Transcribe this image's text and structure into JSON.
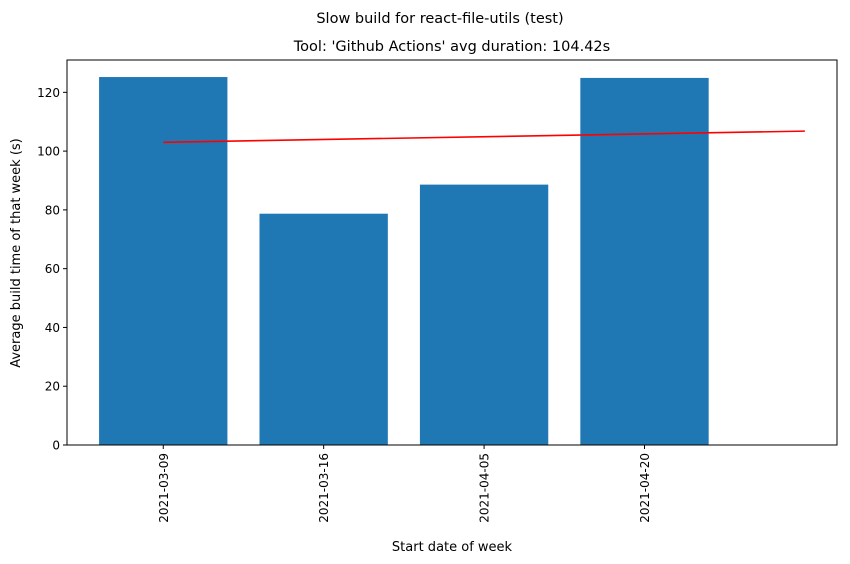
{
  "chart_data": {
    "type": "bar",
    "suptitle": "Slow build for react-file-utils (test)",
    "title": "Tool: 'Github Actions' avg duration: 104.42s",
    "xlabel": "Start date of week",
    "ylabel": "Average build time of that week (s)",
    "categories": [
      "2021-03-09",
      "2021-03-16",
      "2021-04-05",
      "2021-04-20"
    ],
    "values": [
      125.2,
      78.7,
      88.6,
      124.9
    ],
    "trend_line": {
      "x_start": 0,
      "x_end": 4,
      "y_start": 103.0,
      "y_end": 106.8
    },
    "ylim": [
      0,
      131
    ],
    "xlim": [
      -0.6,
      4.2
    ],
    "yticks": [
      0,
      20,
      40,
      60,
      80,
      100,
      120
    ],
    "bar_color": "#1f77b4",
    "trend_color": "#ff0000",
    "grid": false
  }
}
